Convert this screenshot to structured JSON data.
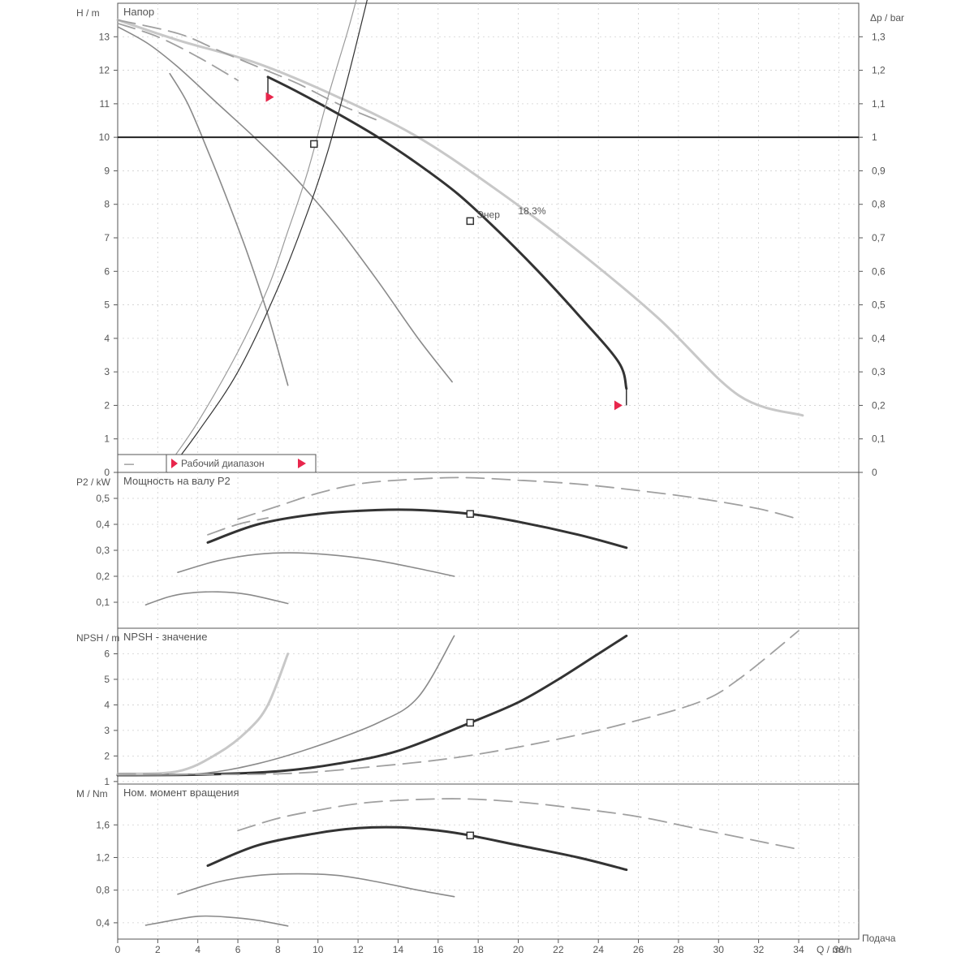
{
  "chart_data": [
    {
      "panel": "head",
      "type": "line",
      "title": "Напор",
      "ylabel": "H / m",
      "y2label": "Δp / bar",
      "ylim": [
        0,
        14
      ],
      "xlim": [
        0,
        37
      ],
      "yticks": [
        "0",
        "1",
        "2",
        "3",
        "4",
        "5",
        "6",
        "7",
        "8",
        "9",
        "10",
        "11",
        "12",
        "13"
      ],
      "y2ticks": [
        "0",
        "0,1",
        "0,2",
        "0,3",
        "0,4",
        "0,5",
        "0,6",
        "0,7",
        "0,8",
        "0,9",
        "1",
        "1,1",
        "1,2",
        "1,3"
      ],
      "grid": true,
      "series": [
        {
          "style": "main",
          "values": [
            [
              7.5,
              11.8
            ],
            [
              9,
              11.35
            ],
            [
              11,
              10.7
            ],
            [
              13,
              10
            ],
            [
              15,
              9.2
            ],
            [
              17,
              8.3
            ],
            [
              19,
              7.2
            ],
            [
              21,
              6.0
            ],
            [
              23,
              4.7
            ],
            [
              25,
              3.3
            ],
            [
              25.4,
              2.5
            ]
          ]
        },
        {
          "style": "grey",
          "values": [
            [
              0,
              13.3
            ],
            [
              1.5,
              12.8
            ],
            [
              3,
              12.1
            ],
            [
              5,
              11
            ],
            [
              7,
              9.9
            ],
            [
              9,
              8.7
            ],
            [
              11,
              7.3
            ],
            [
              13,
              5.7
            ],
            [
              15,
              4.0
            ],
            [
              16.7,
              2.7
            ]
          ]
        },
        {
          "style": "grey",
          "values": [
            [
              2.6,
              11.9
            ],
            [
              3.5,
              11
            ],
            [
              4.5,
              9.6
            ],
            [
              5.5,
              8.1
            ],
            [
              6.5,
              6.5
            ],
            [
              7.5,
              4.7
            ],
            [
              8.5,
              2.6
            ]
          ]
        },
        {
          "style": "light",
          "values": [
            [
              0,
              13.5
            ],
            [
              3,
              12.9
            ],
            [
              7,
              12.2
            ],
            [
              11,
              11.2
            ],
            [
              15,
              10.0
            ],
            [
              19,
              8.4
            ],
            [
              23,
              6.6
            ],
            [
              27,
              4.6
            ],
            [
              31,
              2.3
            ],
            [
              34.2,
              1.7
            ]
          ]
        },
        {
          "style": "dashed",
          "values": [
            [
              0,
              13.5
            ],
            [
              3,
              13.1
            ],
            [
              5,
              12.6
            ],
            [
              7,
              12.1
            ],
            [
              9,
              11.6
            ],
            [
              11,
              11.0
            ],
            [
              13,
              10.5
            ]
          ]
        },
        {
          "style": "dashed",
          "values": [
            [
              0,
              13.4
            ],
            [
              2,
              13.0
            ],
            [
              4,
              12.4
            ],
            [
              6,
              11.7
            ]
          ]
        },
        {
          "style": "system",
          "values": [
            [
              2.5,
              0
            ],
            [
              4,
              1.2
            ],
            [
              6,
              3.0
            ],
            [
              8,
              5.5
            ],
            [
              9.5,
              7.8
            ],
            [
              10.5,
              9.6
            ],
            [
              11.5,
              11.8
            ],
            [
              12.5,
              14.2
            ]
          ]
        },
        {
          "style": "system-grey",
          "values": [
            [
              2.5,
              0.2
            ],
            [
              4,
              1.5
            ],
            [
              6,
              3.6
            ],
            [
              7.5,
              5.5
            ],
            [
              8.5,
              7.2
            ],
            [
              9.5,
              9.0
            ],
            [
              10.5,
              11.2
            ],
            [
              11.5,
              13.2
            ],
            [
              12,
              14.3
            ]
          ]
        }
      ],
      "hline": 10,
      "markers": [
        {
          "label": "Энер",
          "x": 17.6,
          "y": 7.5
        },
        {
          "label": "",
          "x": 9.8,
          "y": 9.8
        }
      ],
      "annotation": "18.3%",
      "range_markers": [
        {
          "x": 7.6,
          "y": 11.2,
          "color": "#e8264c"
        },
        {
          "x": 25,
          "y": 2.0,
          "color": "#e8264c"
        }
      ],
      "legend": {
        "dashed_label": "—",
        "range_label": "Рабочий диапазон"
      }
    },
    {
      "panel": "power",
      "type": "line",
      "title": "Мощность на валу P2",
      "ylabel": "P2 / kW",
      "ylim": [
        0,
        0.6
      ],
      "xlim": [
        0,
        37
      ],
      "yticks": [
        "0,1",
        "0,2",
        "0,3",
        "0,4",
        "0,5"
      ],
      "grid": true,
      "series": [
        {
          "style": "main",
          "values": [
            [
              4.5,
              0.33
            ],
            [
              7,
              0.4
            ],
            [
              10,
              0.44
            ],
            [
              13,
              0.455
            ],
            [
              15,
              0.455
            ],
            [
              17.6,
              0.44
            ],
            [
              20,
              0.41
            ],
            [
              23,
              0.36
            ],
            [
              25.4,
              0.31
            ]
          ]
        },
        {
          "style": "grey",
          "values": [
            [
              3,
              0.215
            ],
            [
              5,
              0.26
            ],
            [
              7,
              0.285
            ],
            [
              9,
              0.29
            ],
            [
              11,
              0.28
            ],
            [
              13,
              0.26
            ],
            [
              15,
              0.23
            ],
            [
              16.8,
              0.2
            ]
          ]
        },
        {
          "style": "grey",
          "values": [
            [
              1.4,
              0.09
            ],
            [
              2.5,
              0.12
            ],
            [
              3.5,
              0.135
            ],
            [
              5,
              0.14
            ],
            [
              6.5,
              0.13
            ],
            [
              8.5,
              0.095
            ]
          ]
        },
        {
          "style": "dashed",
          "values": [
            [
              6,
              0.42
            ],
            [
              8,
              0.47
            ],
            [
              10,
              0.52
            ],
            [
              12,
              0.555
            ],
            [
              14,
              0.57
            ],
            [
              17,
              0.58
            ],
            [
              20,
              0.57
            ],
            [
              23,
              0.555
            ],
            [
              26,
              0.53
            ],
            [
              29,
              0.5
            ],
            [
              32,
              0.46
            ],
            [
              34,
              0.42
            ]
          ]
        },
        {
          "style": "dashed",
          "values": [
            [
              4.5,
              0.36
            ],
            [
              6,
              0.4
            ],
            [
              7.5,
              0.425
            ]
          ]
        }
      ],
      "markers": [
        {
          "x": 17.6,
          "y": 0.44
        }
      ]
    },
    {
      "panel": "npsh",
      "type": "line",
      "title": "NPSH - значение",
      "ylabel": "NPSH / m",
      "ylim": [
        0.9,
        7
      ],
      "xlim": [
        0,
        37
      ],
      "yticks": [
        "1",
        "2",
        "3",
        "4",
        "5",
        "6"
      ],
      "grid": true,
      "series": [
        {
          "style": "main",
          "values": [
            [
              0,
              1.25
            ],
            [
              4,
              1.27
            ],
            [
              8,
              1.4
            ],
            [
              11,
              1.7
            ],
            [
              14,
              2.2
            ],
            [
              17.6,
              3.3
            ],
            [
              20,
              4.1
            ],
            [
              22,
              5.0
            ],
            [
              24,
              6.0
            ],
            [
              25.4,
              6.7
            ]
          ]
        },
        {
          "style": "grey",
          "values": [
            [
              0,
              1.25
            ],
            [
              4,
              1.3
            ],
            [
              7,
              1.7
            ],
            [
              10,
              2.4
            ],
            [
              13,
              3.3
            ],
            [
              15,
              4.3
            ],
            [
              16.8,
              6.7
            ]
          ]
        },
        {
          "style": "light",
          "values": [
            [
              0,
              1.3
            ],
            [
              3,
              1.4
            ],
            [
              5,
              2.1
            ],
            [
              6.5,
              3.0
            ],
            [
              7.5,
              4.0
            ],
            [
              8.5,
              6.0
            ]
          ]
        },
        {
          "style": "dashed",
          "values": [
            [
              0,
              1.3
            ],
            [
              8,
              1.3
            ],
            [
              13,
              1.6
            ],
            [
              17,
              1.95
            ],
            [
              21,
              2.5
            ],
            [
              25,
              3.2
            ],
            [
              29,
              4.1
            ],
            [
              31,
              5.0
            ],
            [
              34,
              6.9
            ]
          ]
        }
      ],
      "markers": [
        {
          "x": 17.6,
          "y": 3.3
        }
      ]
    },
    {
      "panel": "torque",
      "type": "line",
      "title": "Ном. момент вращения",
      "ylabel": "M / Nm",
      "ylim": [
        0.2,
        2.1
      ],
      "xlim": [
        0,
        37
      ],
      "xlabel": "Q / m³/h",
      "xlabel_extra": "Подача",
      "xticks": [
        "0",
        "2",
        "4",
        "6",
        "8",
        "10",
        "12",
        "14",
        "16",
        "18",
        "20",
        "22",
        "24",
        "26",
        "28",
        "30",
        "32",
        "34",
        "36"
      ],
      "yticks": [
        "0,4",
        "0,8",
        "1,2",
        "1,6"
      ],
      "grid": true,
      "series": [
        {
          "style": "main",
          "values": [
            [
              4.5,
              1.1
            ],
            [
              7,
              1.35
            ],
            [
              10,
              1.5
            ],
            [
              12,
              1.56
            ],
            [
              14,
              1.57
            ],
            [
              16,
              1.53
            ],
            [
              17.6,
              1.47
            ],
            [
              20,
              1.35
            ],
            [
              23,
              1.2
            ],
            [
              25.4,
              1.05
            ]
          ]
        },
        {
          "style": "grey",
          "values": [
            [
              3,
              0.75
            ],
            [
              5,
              0.9
            ],
            [
              7,
              0.98
            ],
            [
              9,
              1.0
            ],
            [
              11,
              0.98
            ],
            [
              13,
              0.9
            ],
            [
              15,
              0.8
            ],
            [
              16.8,
              0.72
            ]
          ]
        },
        {
          "style": "grey",
          "values": [
            [
              1.4,
              0.37
            ],
            [
              2.5,
              0.42
            ],
            [
              4,
              0.48
            ],
            [
              5.5,
              0.47
            ],
            [
              7,
              0.43
            ],
            [
              8.5,
              0.36
            ]
          ]
        },
        {
          "style": "dashed",
          "values": [
            [
              6,
              1.53
            ],
            [
              8,
              1.68
            ],
            [
              10,
              1.78
            ],
            [
              12,
              1.86
            ],
            [
              14,
              1.9
            ],
            [
              17,
              1.92
            ],
            [
              20,
              1.88
            ],
            [
              23,
              1.8
            ],
            [
              26,
              1.7
            ],
            [
              29,
              1.55
            ],
            [
              32,
              1.4
            ],
            [
              34,
              1.3
            ]
          ]
        }
      ],
      "markers": [
        {
          "x": 17.6,
          "y": 1.47
        }
      ]
    }
  ]
}
